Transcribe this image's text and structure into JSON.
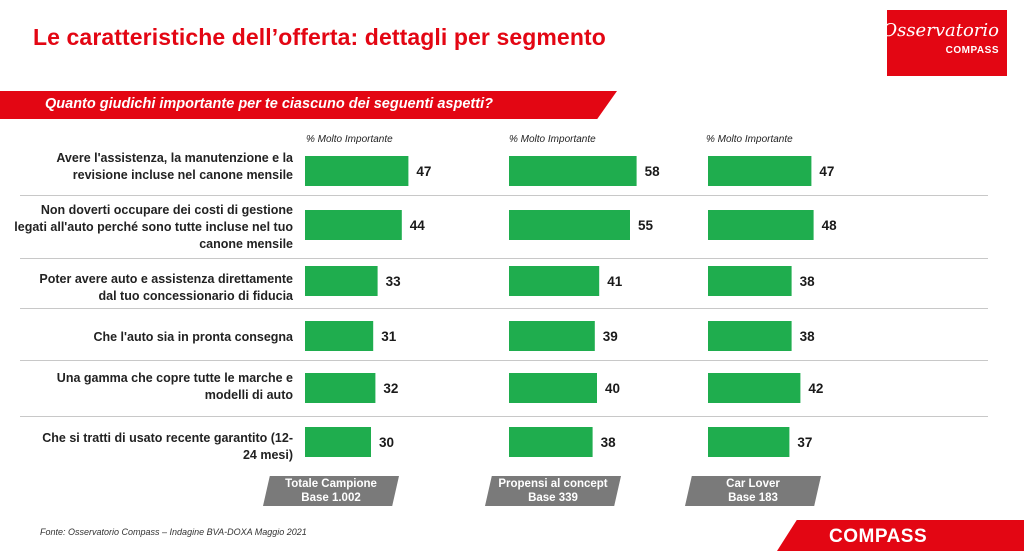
{
  "header": {
    "title": "Le caratteristiche dell’offerta: dettagli per segmento",
    "question": "Quanto giudichi importante per te ciascuno dei seguenti aspetti?"
  },
  "logo": {
    "script": "Osservatorio",
    "sub": "COMPASS"
  },
  "footer": {
    "source": "Fonte: Osservatorio Compass – Indagine BVA-DOXA Maggio 2021",
    "brand": "COMPASS"
  },
  "colors": {
    "bar": "#1fad4e",
    "accent": "#e30613",
    "segment_label_bg": "#7a7a7a"
  },
  "chart_data": {
    "type": "bar",
    "orientation": "horizontal",
    "title": "Quanto giudichi importante per te ciascuno dei seguenti aspetti?",
    "measure_label": "% Molto Importante",
    "categories": [
      "Avere l'assistenza, la manutenzione e la revisione incluse nel canone mensile",
      "Non doverti occupare dei costi di gestione legati all'auto perché sono tutte incluse nel tuo canone mensile",
      "Poter avere auto e assistenza direttamente dal tuo concessionario di fiducia",
      "Che l'auto sia in pronta consegna",
      "Una gamma che copre tutte le marche e modelli di auto",
      "Che si tratti di usato recente garantito (12-24 mesi)"
    ],
    "series": [
      {
        "name": "Totale Campione",
        "base": "Base 1.002",
        "values": [
          47,
          44,
          33,
          31,
          32,
          30
        ]
      },
      {
        "name": "Propensi al concept",
        "base": "Base 339",
        "values": [
          58,
          55,
          41,
          39,
          40,
          38
        ]
      },
      {
        "name": "Car Lover",
        "base": "Base 183",
        "values": [
          47,
          48,
          38,
          38,
          42,
          37
        ]
      }
    ],
    "xlim": [
      0,
      100
    ]
  }
}
